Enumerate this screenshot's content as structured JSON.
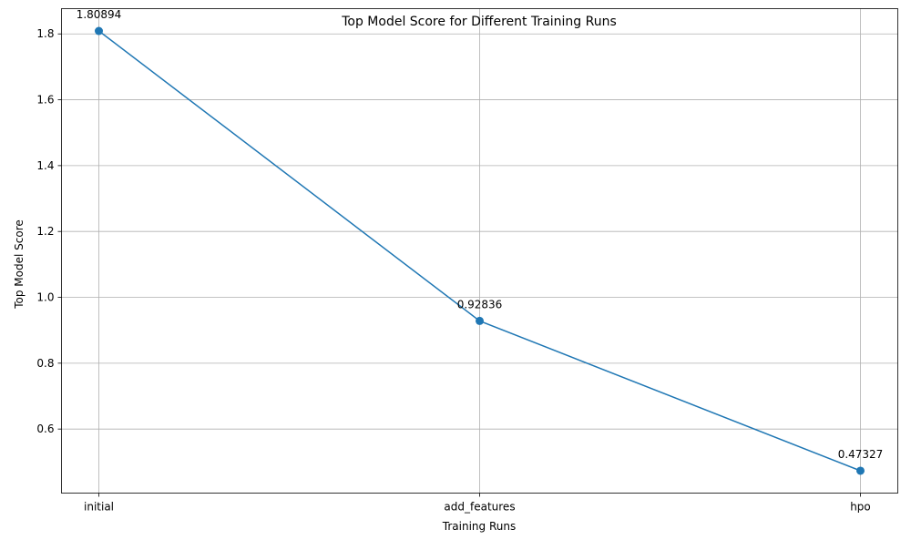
{
  "chart_data": {
    "type": "line",
    "title": "Top Model Score for Different Training Runs",
    "xlabel": "Training Runs",
    "ylabel": "Top Model Score",
    "categories": [
      "initial",
      "add_features",
      "hpo"
    ],
    "series": [
      {
        "values": [
          1.80894,
          0.92836,
          0.47327
        ],
        "color": "#1f77b4",
        "marker": "circle"
      }
    ],
    "data_labels": [
      "1.80894",
      "0.92836",
      "0.47327"
    ],
    "y_ticks": [
      0.6,
      0.8,
      1.0,
      1.2,
      1.4,
      1.6,
      1.8
    ],
    "y_tick_labels": [
      "0.6",
      "0.8",
      "1.0",
      "1.2",
      "1.4",
      "1.6",
      "1.8"
    ],
    "ylim": [
      0.40549,
      1.87672
    ],
    "grid": true,
    "legend": "none"
  }
}
